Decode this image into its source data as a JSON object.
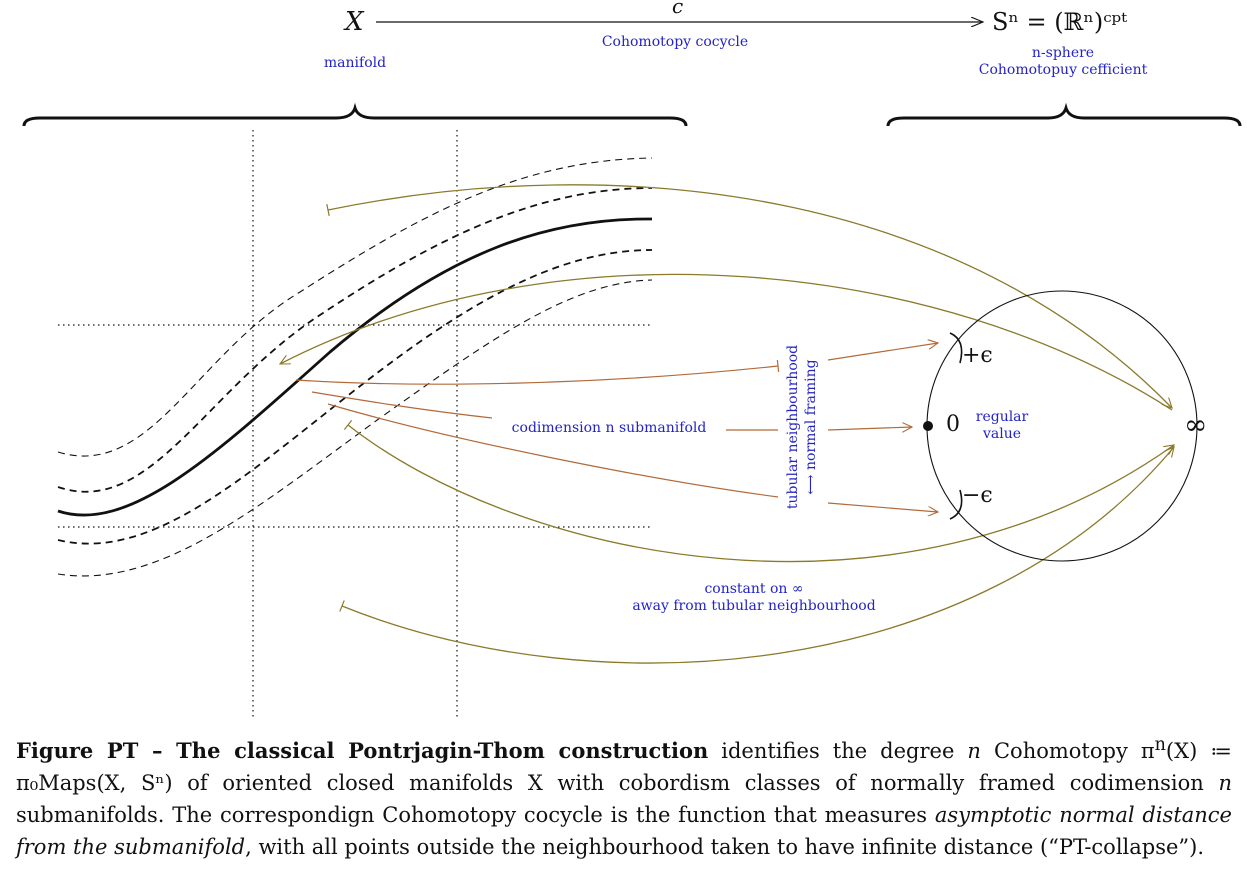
{
  "top_map": {
    "source": "X",
    "arrow_label": "c",
    "target": "Sⁿ = (ℝⁿ)ᶜᵖᵗ",
    "source_note": "manifold",
    "arrow_note": "Cohomotopy cocycle",
    "target_note_1": "n-sphere",
    "target_note_2": "Cohomotopuy cefficient"
  },
  "labels": {
    "submanifold": "codimension n submanifold",
    "tubular_1": "tubular neighbourhood",
    "tubular_2": "⟷ normal framing",
    "plus_eps": "+ϵ",
    "minus_eps": "−ϵ",
    "zero": "0",
    "regular_1": "regular",
    "regular_2": "value",
    "infinity": "∞",
    "constant_1": "constant on ∞",
    "constant_2": "away from tubular neighbourhood"
  },
  "colors": {
    "olive_arrow": "#8a7a2a",
    "copper_arrow": "#b26a3a",
    "note_blue": "#2323c8"
  },
  "caption": {
    "title": "Figure PT – The classical Pontrjagin-Thom construction",
    "t1": " identifies the degree ",
    "n1": "n",
    "t2": " Cohomotopy π",
    "t3": "(X) ≔ π₀Maps(X, Sⁿ) of oriented closed manifolds X with cobordism classes of normally framed codimension ",
    "n2": "n",
    "t4": " submanifolds. The correspondign Cohomotopy cocycle is the function that measures ",
    "emph": "asymptotic normal distance from the submanifold",
    "t5": ", with all points outside the neighbourhood taken to have infinite distance (“PT-collapse”)."
  }
}
